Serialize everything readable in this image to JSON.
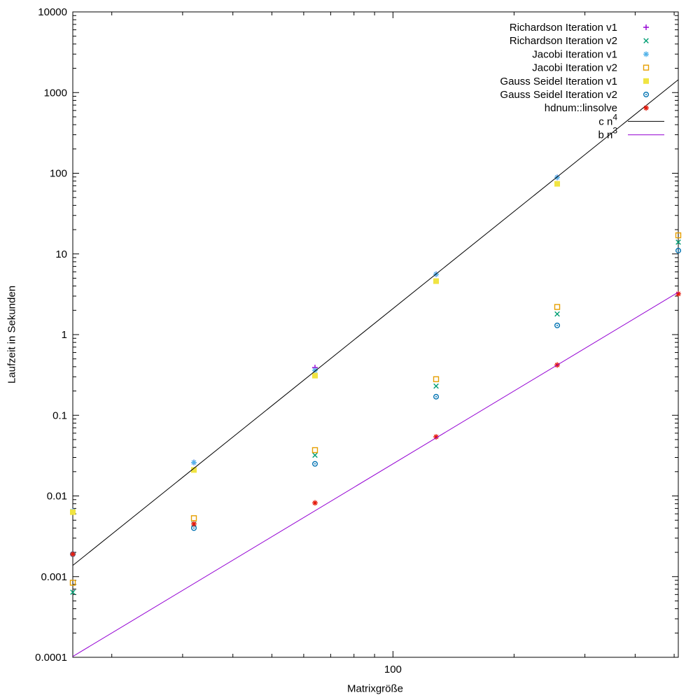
{
  "page": {
    "background": "#ffffff"
  },
  "chart_data": {
    "type": "scatter",
    "title": "",
    "xlabel": "Matrixgröße",
    "ylabel": "Laufzeit in Sekunden",
    "x_scale": "log",
    "y_scale": "log",
    "xlim": [
      16,
      512
    ],
    "ylim": [
      0.0001,
      10000
    ],
    "grid": false,
    "tick_mirror": true,
    "legend_position": "top-right-inside",
    "x_major_ticks": [
      {
        "value": 100,
        "label": "100"
      }
    ],
    "y_major_ticks": [
      {
        "value": 10000,
        "label": "10000"
      },
      {
        "value": 1000,
        "label": "1000"
      },
      {
        "value": 100,
        "label": "100"
      },
      {
        "value": 10,
        "label": "10"
      },
      {
        "value": 1,
        "label": "1"
      },
      {
        "value": 0.1,
        "label": "0.1"
      },
      {
        "value": 0.01,
        "label": "0.01"
      },
      {
        "value": 0.001,
        "label": "0.001"
      },
      {
        "value": 0.0001,
        "label": "0.0001"
      }
    ],
    "x": [
      16,
      32,
      64,
      128,
      256,
      512
    ],
    "series": [
      {
        "name": "Richardson Iteration v1",
        "marker": "plus",
        "color": "#9400d3",
        "values": [
          0.0065,
          0.026,
          0.39,
          5.6,
          89,
          null
        ]
      },
      {
        "name": "Richardson Iteration v2",
        "marker": "cross",
        "color": "#009e73",
        "values": [
          0.00064,
          0.0045,
          0.032,
          0.23,
          1.8,
          14
        ]
      },
      {
        "name": "Jacobi Iteration v1",
        "marker": "asterisk",
        "color": "#56b4e9",
        "values": [
          0.0065,
          0.026,
          0.36,
          5.6,
          89,
          null
        ]
      },
      {
        "name": "Jacobi Iteration v2",
        "marker": "open-square",
        "color": "#e69f00",
        "values": [
          0.00084,
          0.0053,
          0.037,
          0.28,
          2.2,
          17
        ]
      },
      {
        "name": "Gauss Seidel Iteration v1",
        "marker": "filled-square",
        "color": "#f0e442",
        "values": [
          0.0063,
          0.021,
          0.31,
          4.6,
          74,
          null
        ]
      },
      {
        "name": "Gauss Seidel Iteration v2",
        "marker": "open-circle",
        "color": "#0072b2",
        "values": [
          0.0019,
          0.004,
          0.025,
          0.17,
          1.3,
          11
        ]
      },
      {
        "name": "hdnum::linsolve",
        "marker": "star",
        "color": "#e51e10",
        "values": [
          0.0019,
          0.0045,
          0.0082,
          0.054,
          0.42,
          3.2
        ]
      }
    ],
    "lines": [
      {
        "name": "c n^4",
        "color": "#000000",
        "coef": 2.1e-08,
        "power": 4
      },
      {
        "name": "b n^3",
        "color": "#9400d3",
        "coef": 2.5e-08,
        "power": 3
      }
    ]
  }
}
